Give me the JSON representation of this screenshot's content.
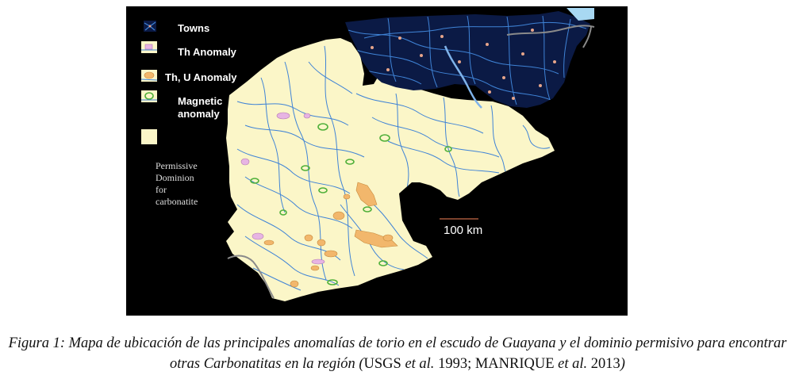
{
  "legend": {
    "towns": "Towns",
    "th_anomaly": "Th Anomaly",
    "th_u_anomaly": "Th, U Anomaly",
    "magnetic_anomaly_line1": "Magnetic",
    "magnetic_anomaly_line2": "anomaly",
    "permissive_line1": "Permissive",
    "permissive_line2": "Dominion",
    "permissive_line3": "for",
    "permissive_line4": "carbonatite"
  },
  "scale_bar": {
    "label": "100 km"
  },
  "caption": {
    "part1": "Figura 1: Mapa de ubicación de las principales anomalías de torio en el escudo de Guayana y el dominio permisivo para encontrar otras Carbonatitas en la región (",
    "cite1_authors": "USGS",
    "cite1_etal": " et al.",
    "cite1_year": " 1993; ",
    "cite2_authors": "MANRIQUE",
    "cite2_etal": " et al.",
    "cite2_year": " 2013",
    "part_end": ")"
  },
  "colors": {
    "background": "#000000",
    "permissive_domain": "#fbf6c8",
    "towns_area": "#0b1a45",
    "rivers": "#3f83d6",
    "th_anomaly": "#e7b4e3",
    "th_u_anomaly": "#f2b76c",
    "magnetic_anomaly": "#4fb03a",
    "border": "#8a8a8a"
  },
  "icons": [
    "towns-icon",
    "th-anomaly-icon",
    "th-u-anomaly-icon",
    "magnetic-anomaly-icon",
    "permissive-domain-swatch"
  ]
}
